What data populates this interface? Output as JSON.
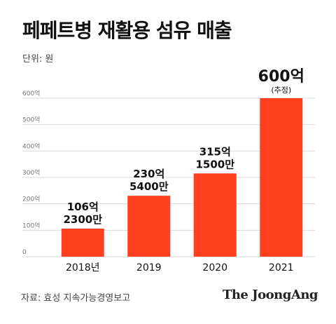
{
  "title": "페페트병 재활용 섬유 매출",
  "unit_label": "단위: 원",
  "source": "자료: 효성 지속가능경영보고",
  "brand": "The JoongAng",
  "colors": {
    "bar": "#ff3f1e",
    "grid": "#d9d9d9",
    "tick": "#777777"
  },
  "chart_data": {
    "type": "bar",
    "categories": [
      "2018년",
      "2019",
      "2020",
      "2021"
    ],
    "values": [
      106.23,
      230.54,
      315.15,
      600
    ],
    "data_labels": [
      [
        "106억",
        "2300만"
      ],
      [
        "230억",
        "5400만"
      ],
      [
        "315억",
        "1500만"
      ],
      [
        "600억",
        "(추정)"
      ]
    ],
    "ylim": [
      0,
      600
    ],
    "yticks": [
      0,
      100,
      200,
      300,
      400,
      500,
      600
    ],
    "ytick_labels": [
      "0",
      "100억",
      "200억",
      "300억",
      "400억",
      "500억",
      "600억"
    ],
    "grid": true,
    "title": "페페트병 재활용 섬유 매출",
    "xlabel": "",
    "ylabel": "단위: 원"
  }
}
